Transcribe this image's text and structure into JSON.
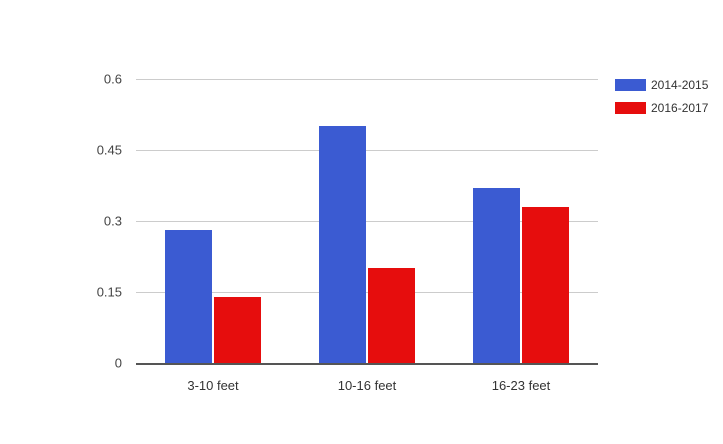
{
  "chart_data": {
    "type": "bar",
    "categories": [
      "3-10 feet",
      "10-16 feet",
      "16-23 feet"
    ],
    "series": [
      {
        "name": "2014-2015",
        "color": "#3b5bd2",
        "values": [
          0.28,
          0.5,
          0.37
        ]
      },
      {
        "name": "2016-2017",
        "color": "#e60d0d",
        "values": [
          0.14,
          0.2,
          0.33
        ]
      }
    ],
    "xlabel": "",
    "ylabel": "",
    "ylim": [
      0,
      0.6
    ],
    "yticks": [
      0,
      0.15,
      0.3,
      0.45,
      0.6
    ],
    "ytick_labels": [
      "0",
      "0.15",
      "0.3",
      "0.45",
      "0.6"
    ],
    "grid": "horizontal",
    "legend_position": "top-right",
    "axis_color": "#555555",
    "gridline_color": "#cccccc"
  }
}
